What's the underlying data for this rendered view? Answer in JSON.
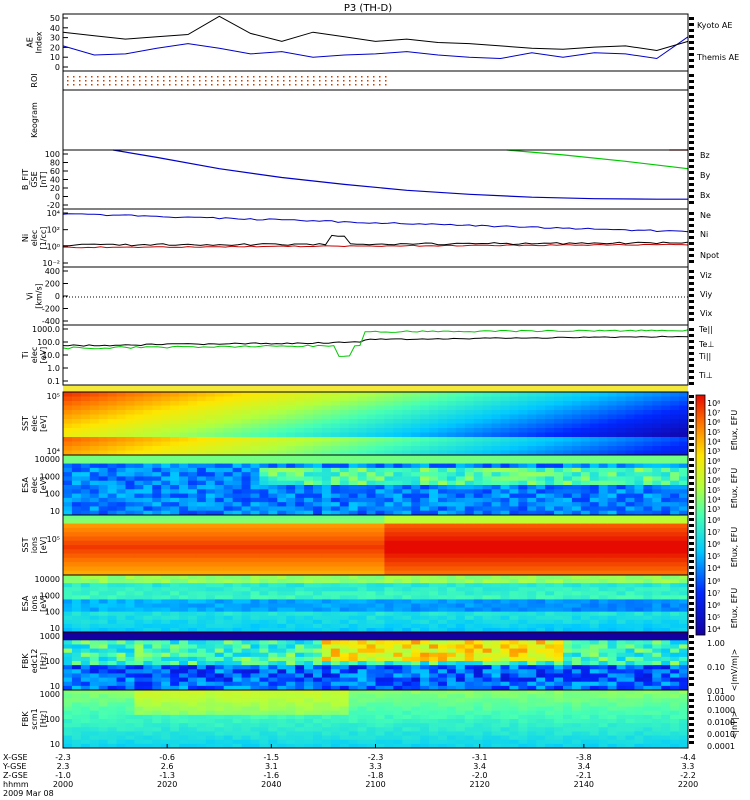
{
  "title": "P3 (TH-D)",
  "chart_data": [
    {
      "id": "ae",
      "type": "line",
      "ylabel": "AE Index",
      "yticks": [
        "50",
        "40",
        "30",
        "20",
        "10",
        "0"
      ],
      "ylim": [
        0,
        50
      ],
      "series": [
        {
          "name": "Kyoto AE",
          "color": "#0000c8",
          "x": [
            0,
            5,
            10,
            15,
            20,
            25,
            30,
            35,
            40,
            45,
            50,
            55,
            60,
            65,
            70,
            75,
            80,
            85,
            90,
            95,
            100
          ],
          "y": [
            22,
            14,
            15,
            20,
            24,
            20,
            15,
            17,
            12,
            14,
            15,
            17,
            14,
            12,
            11,
            16,
            12,
            16,
            15,
            11,
            30
          ]
        },
        {
          "name": "Themis AE",
          "color": "#000000",
          "x": [
            0,
            5,
            10,
            15,
            20,
            25,
            30,
            35,
            40,
            45,
            50,
            55,
            60,
            65,
            70,
            75,
            80,
            85,
            90,
            95,
            100
          ],
          "y": [
            34,
            31,
            28,
            30,
            32,
            48,
            33,
            26,
            34,
            30,
            26,
            28,
            25,
            24,
            22,
            20,
            19,
            21,
            22,
            18,
            26
          ]
        }
      ]
    },
    {
      "id": "roi",
      "type": "scatter",
      "ylabel": "ROI"
    },
    {
      "id": "keogram",
      "type": "heatmap",
      "ylabel": "Keogram"
    },
    {
      "id": "bfit",
      "type": "line",
      "ylabel": "B_FIT GSE [nT]",
      "yticks": [
        "100",
        "80",
        "60",
        "40",
        "20",
        "0",
        "-20"
      ],
      "ylim": [
        -20,
        100
      ],
      "series": [
        {
          "name": "Bz",
          "color": "#c80000",
          "x": [
            97,
            100
          ],
          "y": [
            100,
            100
          ]
        },
        {
          "name": "By",
          "color": "#00c800",
          "x": [
            71,
            80,
            90,
            100
          ],
          "y": [
            100,
            90,
            77,
            62
          ]
        },
        {
          "name": "Bx",
          "color": "#0000c8",
          "x": [
            8,
            15,
            25,
            35,
            45,
            55,
            65,
            75,
            85,
            95,
            100
          ],
          "y": [
            100,
            85,
            62,
            44,
            30,
            18,
            10,
            4,
            1,
            0,
            0
          ]
        }
      ]
    },
    {
      "id": "density",
      "type": "line",
      "ylabel": "Ni elec [1/cc]",
      "yticks": [
        "10⁴",
        "10²",
        "10⁰",
        "10⁻²"
      ],
      "ylim": [
        -3,
        5
      ],
      "series": [
        {
          "name": "Ne",
          "color": "#c80000"
        },
        {
          "name": "Ni",
          "color": "#000000"
        },
        {
          "name": "Npot",
          "color": "#0000c8"
        }
      ]
    },
    {
      "id": "velocity",
      "type": "line",
      "ylabel": "Vi [km/s]",
      "yticks": [
        "400",
        "200",
        "0",
        "-200",
        "-400"
      ],
      "ylim": [
        -500,
        500
      ],
      "series": [
        {
          "name": "Viz",
          "color": "#c80000"
        },
        {
          "name": "Viy",
          "color": "#00c800"
        },
        {
          "name": "Vix",
          "color": "#0000c8"
        }
      ]
    },
    {
      "id": "temperature",
      "type": "line",
      "ylabel": "Ti elec [eV]",
      "yticks": [
        "1000.0",
        "100.0",
        "10.0",
        "1.0",
        "0.1"
      ],
      "ylim": [
        -1.3,
        3.7
      ],
      "series": [
        {
          "name": "Te||",
          "color": "#000000"
        },
        {
          "name": "Te⊥",
          "color": "#c80000"
        },
        {
          "name": "Ti||",
          "color": "#00c800"
        },
        {
          "name": "Ti⊥",
          "color": "#0000c8"
        }
      ]
    },
    {
      "id": "sst_e",
      "type": "heatmap",
      "ylabel": "SST elec [eV]",
      "yticks": [
        "10⁵",
        "10⁴"
      ],
      "cbar": [
        "10⁸",
        "10⁷",
        "10⁶",
        "10⁵",
        "10⁴",
        "10³"
      ],
      "cbarlabel": "Eflux, EFU"
    },
    {
      "id": "esa_e",
      "type": "heatmap",
      "ylabel": "ESA elec [eV]",
      "yticks": [
        "10000",
        "1000",
        "100",
        "10"
      ],
      "cbar": [
        "10⁸",
        "10⁷",
        "10⁶",
        "10⁵",
        "10⁴",
        "10³"
      ],
      "cbarlabel": "Eflux, EFU"
    },
    {
      "id": "sst_i",
      "type": "heatmap",
      "ylabel": "SST ions [eV]",
      "yticks": [
        "10⁵"
      ],
      "cbar": [
        "10⁸",
        "10⁷",
        "10⁶",
        "10⁵",
        "10⁴"
      ],
      "cbarlabel": "Eflux, EFU"
    },
    {
      "id": "esa_i",
      "type": "heatmap",
      "ylabel": "ESA ions [eV]",
      "yticks": [
        "10000",
        "1000",
        "100",
        "10"
      ],
      "cbar": [
        "10⁸",
        "10⁷",
        "10⁶",
        "10⁵",
        "10⁴"
      ],
      "cbarlabel": "Eflux, EFU"
    },
    {
      "id": "fbk_e",
      "type": "heatmap",
      "ylabel": "FBK edc12 [Hz]",
      "yticks": [
        "1000",
        "100",
        "10"
      ],
      "cbar": [
        "1.00",
        "0.10",
        "0.01"
      ],
      "cbarlabel": "<|mV/m|>"
    },
    {
      "id": "fbk_b",
      "type": "heatmap",
      "ylabel": "FBK scm1 [Hz]",
      "yticks": [
        "1000",
        "100",
        "10"
      ],
      "cbar": [
        "1.0000",
        "0.1000",
        "0.0100",
        "0.0010",
        "0.0001"
      ],
      "cbarlabel": "<|nT|>"
    }
  ],
  "xaxis": {
    "row_labels": [
      "X-GSE",
      "Y-GSE",
      "Z-GSE",
      "hhmm",
      "2009 Mar 08"
    ],
    "columns": [
      {
        "x": "-2.3",
        "y": "2.3",
        "z": "-1.0",
        "t": "2000"
      },
      {
        "x": "-0.6",
        "y": "2.6",
        "z": "-1.3",
        "t": "2020"
      },
      {
        "x": "-1.5",
        "y": "3.1",
        "z": "-1.6",
        "t": "2040"
      },
      {
        "x": "-2.3",
        "y": "3.3",
        "z": "-1.8",
        "t": "2100"
      },
      {
        "x": "-3.1",
        "y": "3.4",
        "z": "-2.0",
        "t": "2120"
      },
      {
        "x": "-3.8",
        "y": "3.4",
        "z": "-2.1",
        "t": "2140"
      },
      {
        "x": "-4.4",
        "y": "3.3",
        "z": "-2.2",
        "t": "2200"
      }
    ]
  }
}
